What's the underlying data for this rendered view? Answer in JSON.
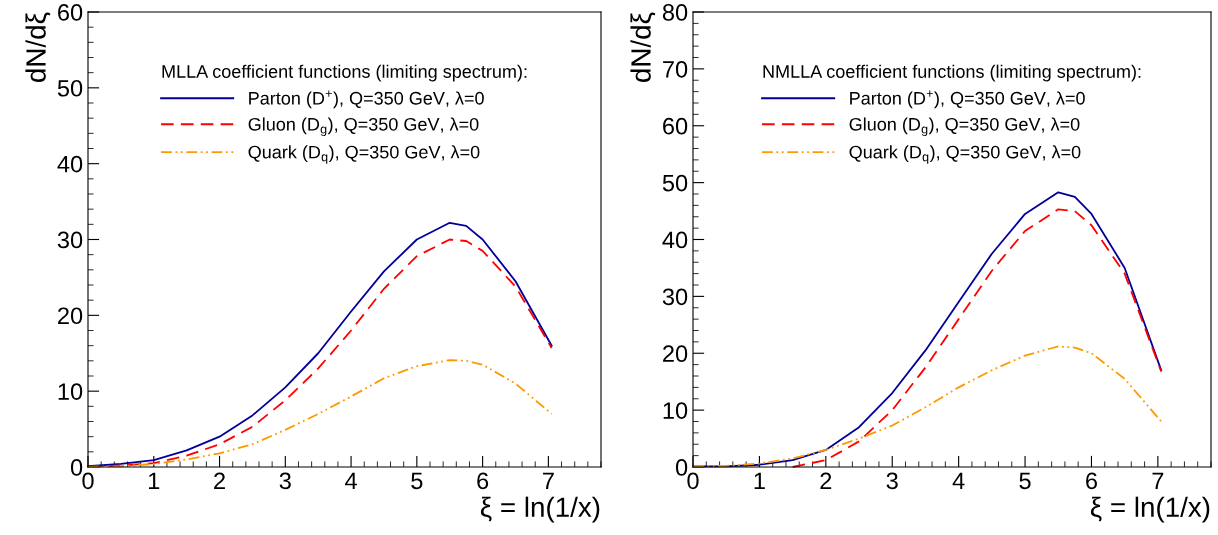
{
  "chart_data": [
    {
      "type": "line",
      "legend_title": "MLLA coefficient functions (limiting spectrum):",
      "xlabel": "ξ = ln(1/x)",
      "ylabel": "dN/dξ",
      "x": [
        0,
        0.5,
        1,
        1.5,
        2,
        2.5,
        3,
        3.5,
        4,
        4.5,
        5,
        5.5,
        5.75,
        6,
        6.5,
        7.05
      ],
      "xlim": [
        0,
        7.8
      ],
      "xticks": [
        0,
        1,
        2,
        3,
        4,
        5,
        6,
        7
      ],
      "ylim": [
        0,
        60
      ],
      "yticks": [
        0,
        10,
        20,
        30,
        40,
        50,
        60
      ],
      "legend": "top",
      "grid": false,
      "series": [
        {
          "name": "Parton (D$^{+}$), Q=350 GeV, λ=0",
          "color": "#000099",
          "line_style": "solid",
          "values": [
            0.1,
            0.4,
            0.9,
            2.2,
            4.0,
            6.8,
            10.5,
            15,
            20.5,
            25.8,
            30.0,
            32.2,
            31.8,
            30,
            24.5,
            16
          ]
        },
        {
          "name": "Gluon (D$_{g}$), Q=350 GeV, λ=0",
          "color": "#ff0000",
          "line_style": "dashed",
          "values": [
            0,
            0.2,
            0.5,
            1.5,
            3.0,
            5.3,
            8.8,
            13,
            18,
            23.5,
            27.8,
            30,
            29.8,
            28.5,
            23.8,
            15.7
          ]
        },
        {
          "name": "Quark (D$_{q}$), Q=350 GeV, λ=0",
          "color": "#ff9900",
          "line_style": "dotted",
          "values": [
            0,
            0.1,
            0.4,
            1.0,
            1.8,
            3.0,
            4.9,
            7,
            9.3,
            11.7,
            13.3,
            14.1,
            14,
            13.5,
            11,
            7
          ]
        }
      ]
    },
    {
      "type": "line",
      "legend_title": "NMLLA coefficient functions (limiting spectrum):",
      "xlabel": "ξ = ln(1/x)",
      "ylabel": "dN/dξ",
      "x": [
        0,
        0.5,
        1,
        1.5,
        2,
        2.5,
        3,
        3.5,
        4,
        4.5,
        5,
        5.5,
        5.75,
        6,
        6.5,
        7.05
      ],
      "xlim": [
        0,
        7.8
      ],
      "xticks": [
        0,
        1,
        2,
        3,
        4,
        5,
        6,
        7
      ],
      "ylim": [
        0,
        80
      ],
      "yticks": [
        0,
        10,
        20,
        30,
        40,
        50,
        60,
        70,
        80
      ],
      "legend": "top",
      "grid": false,
      "series": [
        {
          "name": "Parton (D$^{+}$), Q=350 GeV, λ=0",
          "color": "#000099",
          "line_style": "solid",
          "values": [
            0.1,
            0.1,
            0.4,
            1.2,
            3.0,
            7,
            13,
            20.5,
            29,
            37.5,
            44.5,
            48.3,
            47.5,
            44.5,
            35,
            17
          ]
        },
        {
          "name": "Gluon (D$_{g}$), Q=350 GeV, λ=0",
          "color": "#ff0000",
          "line_style": "dashed",
          "values": [
            null,
            null,
            null,
            0,
            1.2,
            4.5,
            10,
            17.5,
            26,
            34.5,
            41.5,
            45.3,
            45,
            42.5,
            34,
            16.8
          ]
        },
        {
          "name": "Quark (D$_{q}$), Q=350 GeV, λ=0",
          "color": "#ff9900",
          "line_style": "dotted",
          "values": [
            0.1,
            0.2,
            0.6,
            1.5,
            3.0,
            5.0,
            7.3,
            10.5,
            14,
            17,
            19.6,
            21.2,
            21,
            20,
            15.5,
            8
          ]
        }
      ]
    }
  ]
}
